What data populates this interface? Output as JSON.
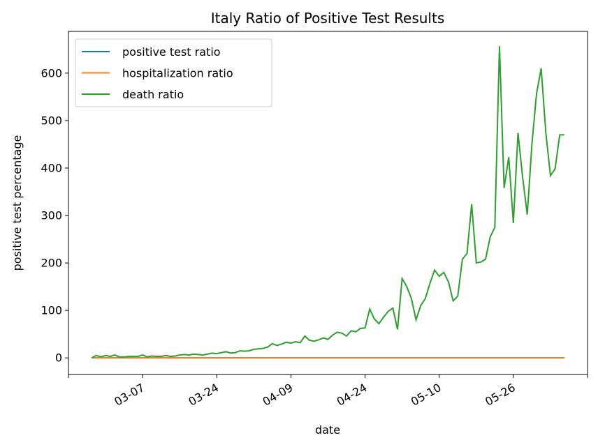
{
  "chart_data": {
    "type": "line",
    "title": "Italy Ratio of Positive Test Results",
    "x_label": "date",
    "y_label": "positive test percentage",
    "categories": [
      null,
      null,
      null,
      null,
      null,
      null,
      null,
      null,
      null,
      null,
      null,
      "03-07",
      null,
      null,
      null,
      null,
      null,
      null,
      null,
      null,
      null,
      null,
      null,
      null,
      null,
      null,
      null,
      "03-24",
      null,
      null,
      null,
      null,
      null,
      null,
      null,
      null,
      null,
      null,
      null,
      null,
      null,
      null,
      null,
      "04-09",
      null,
      null,
      null,
      null,
      null,
      null,
      null,
      null,
      null,
      null,
      null,
      null,
      null,
      null,
      null,
      "04-24",
      null,
      null,
      null,
      null,
      null,
      null,
      null,
      null,
      null,
      null,
      null,
      null,
      null,
      null,
      null,
      "05-10",
      null,
      null,
      null,
      null,
      null,
      null,
      null,
      null,
      null,
      null,
      null,
      null,
      null,
      null,
      null,
      "05-26",
      null,
      null,
      null,
      null,
      null,
      null,
      null,
      null,
      null,
      null,
      null
    ],
    "series": [
      {
        "name": "positive test ratio",
        "color": "#1f77b4",
        "values": [
          0,
          0,
          0,
          0,
          0,
          0,
          0,
          0,
          0,
          0,
          0,
          0,
          0,
          0,
          0,
          0,
          0,
          0,
          0,
          0,
          0,
          0,
          0,
          0,
          0,
          0,
          0,
          0,
          0,
          0,
          0,
          0,
          0,
          0,
          0,
          0,
          0,
          0,
          0,
          0,
          0,
          0,
          0,
          0,
          0,
          0,
          0,
          0,
          0,
          0,
          0,
          0,
          0,
          0,
          0,
          0,
          0,
          0,
          0,
          0,
          0,
          0,
          0,
          0,
          0,
          0,
          0,
          0,
          0,
          0,
          0,
          0,
          0,
          0,
          0,
          0,
          0,
          0,
          0,
          0,
          0,
          0,
          0,
          0,
          0,
          0,
          0,
          0,
          0,
          0,
          0,
          0,
          0,
          0,
          0,
          0,
          0,
          0,
          0,
          0,
          0,
          0,
          0
        ]
      },
      {
        "name": "hospitalization ratio",
        "color": "#ff7f0e",
        "values": [
          0,
          0,
          0,
          0,
          0,
          0,
          0,
          0,
          0,
          0,
          0,
          0,
          0,
          0,
          0,
          0,
          0,
          0,
          0,
          0,
          0,
          0,
          0,
          0,
          0,
          0,
          0,
          0,
          0,
          0,
          0,
          0,
          0,
          0,
          0,
          0,
          0,
          0,
          0,
          0,
          0,
          0,
          0,
          0,
          0,
          0,
          0,
          0,
          0,
          0,
          0,
          0,
          0,
          0,
          0,
          0,
          0,
          0,
          0,
          0,
          0,
          0,
          0,
          0,
          0,
          0,
          0,
          0,
          0,
          0,
          0,
          0,
          0,
          0,
          0,
          0,
          0,
          0,
          0,
          0,
          0,
          0,
          0,
          0,
          0,
          0,
          0,
          0,
          0,
          0,
          0,
          0,
          0,
          0,
          0,
          0,
          0,
          0,
          0,
          0,
          0,
          0,
          0
        ]
      },
      {
        "name": "death ratio",
        "color": "#2ca02c",
        "values": [
          0,
          5,
          2,
          5,
          3,
          6,
          2,
          2,
          3,
          3,
          3,
          6,
          2,
          4,
          3,
          3,
          5,
          3,
          4,
          6,
          7,
          6,
          8,
          7,
          6,
          8,
          10,
          9,
          11,
          13,
          10,
          11,
          15,
          14,
          15,
          18,
          19,
          20,
          23,
          30,
          26,
          29,
          33,
          31,
          34,
          32,
          46,
          37,
          35,
          38,
          42,
          39,
          48,
          54,
          52,
          46,
          57,
          55,
          62,
          63,
          103,
          82,
          72,
          86,
          98,
          105,
          60,
          167,
          150,
          125,
          80,
          110,
          125,
          157,
          185,
          172,
          180,
          160,
          120,
          130,
          208,
          220,
          324,
          200,
          202,
          208,
          255,
          275,
          657,
          358,
          423,
          284,
          474,
          380,
          302,
          450,
          557,
          610,
          475,
          384,
          398,
          470,
          470
        ]
      }
    ],
    "xlim": [
      -5,
      107
    ],
    "xticks": [
      -5,
      11,
      27,
      43,
      59,
      75,
      91,
      107
    ],
    "ylim": [
      -35,
      688
    ],
    "yticks": [
      0,
      100,
      200,
      300,
      400,
      500,
      600
    ],
    "legend": "upper left"
  }
}
